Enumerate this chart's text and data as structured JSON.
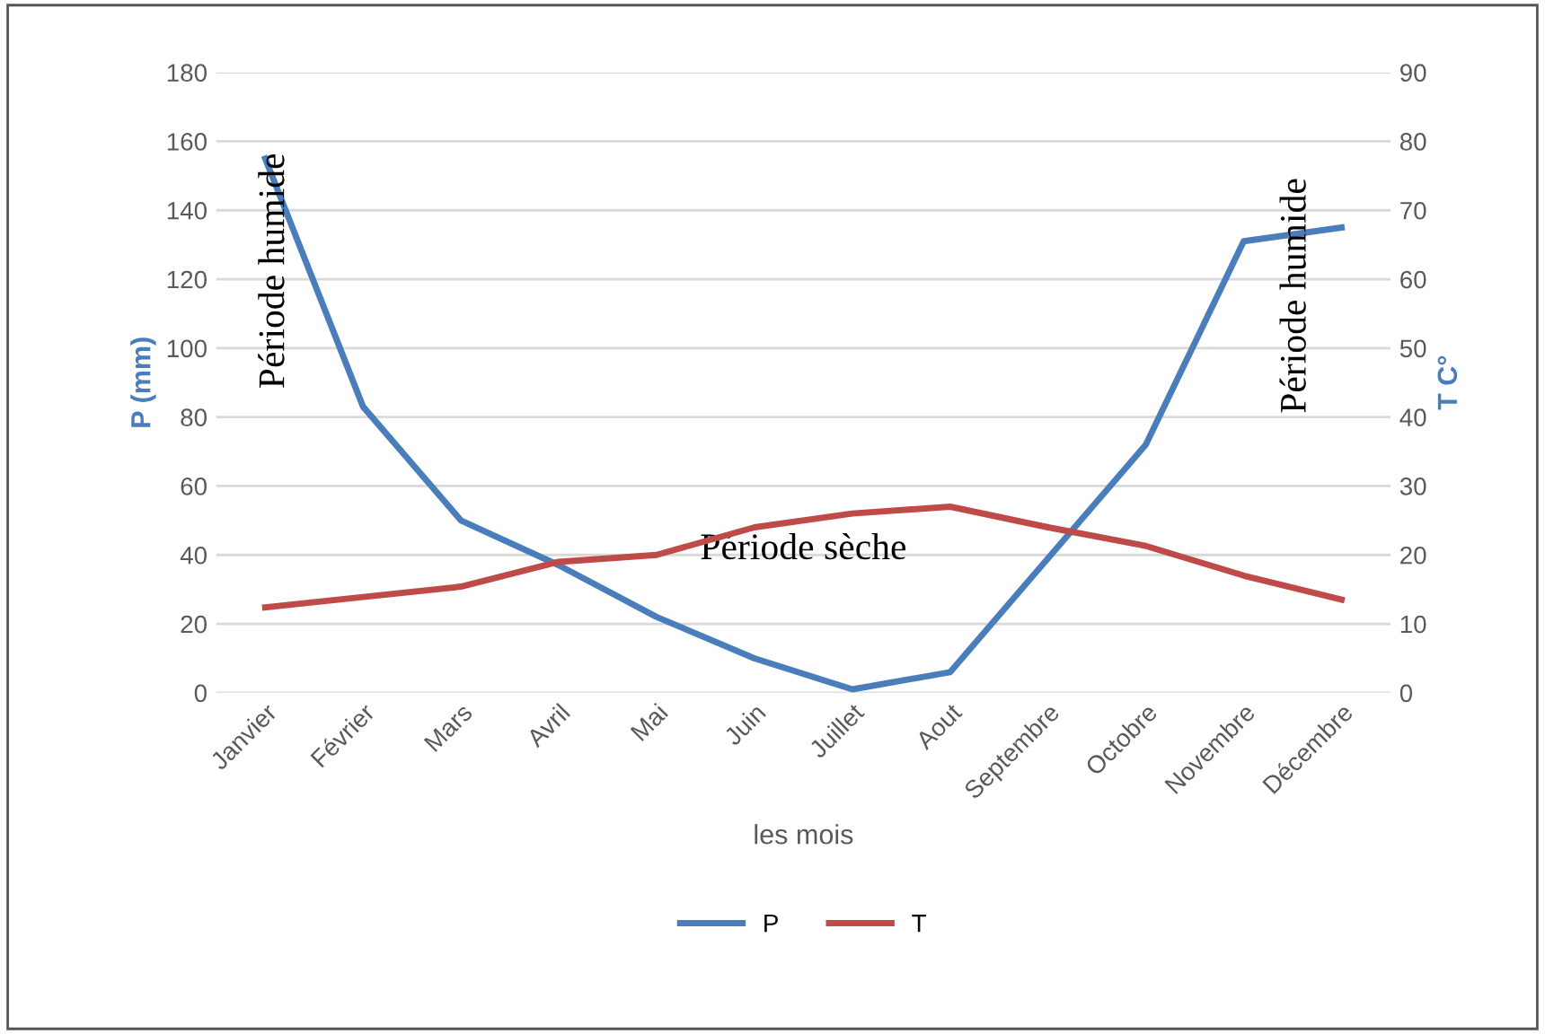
{
  "chart_data": {
    "type": "line",
    "xlabel": "les mois",
    "ylabel": "P (mm)",
    "y2label": "T C°",
    "categories": [
      "Janvier",
      "Février",
      "Mars",
      "Avril",
      "Mai",
      "Juin",
      "Juillet",
      "Aout",
      "Septembre",
      "Octobre",
      "Novembre",
      "Décembre"
    ],
    "series": [
      {
        "name": "P",
        "color": "#4a7ebb",
        "values": [
          155,
          83,
          50,
          37,
          22,
          10,
          1,
          6,
          39,
          72,
          131,
          135
        ]
      },
      {
        "name": "T",
        "color": "#be4b48",
        "axis": "y2",
        "values": [
          12.4,
          13.9,
          15.4,
          19,
          20,
          24,
          26,
          27,
          24,
          21.3,
          17,
          13.5
        ]
      }
    ],
    "ylim": [
      0,
      180
    ],
    "yticks": [
      0,
      20,
      40,
      60,
      80,
      100,
      120,
      140,
      160,
      180
    ],
    "y2lim": [
      0,
      90
    ],
    "y2ticks": [
      0,
      10,
      20,
      30,
      40,
      50,
      60,
      70,
      80,
      90
    ],
    "grid": "y",
    "legend": "bottom",
    "marker": "none",
    "line_style": "solid",
    "annotations": [
      "Période humide",
      "Période sèche",
      "Période humide"
    ]
  }
}
